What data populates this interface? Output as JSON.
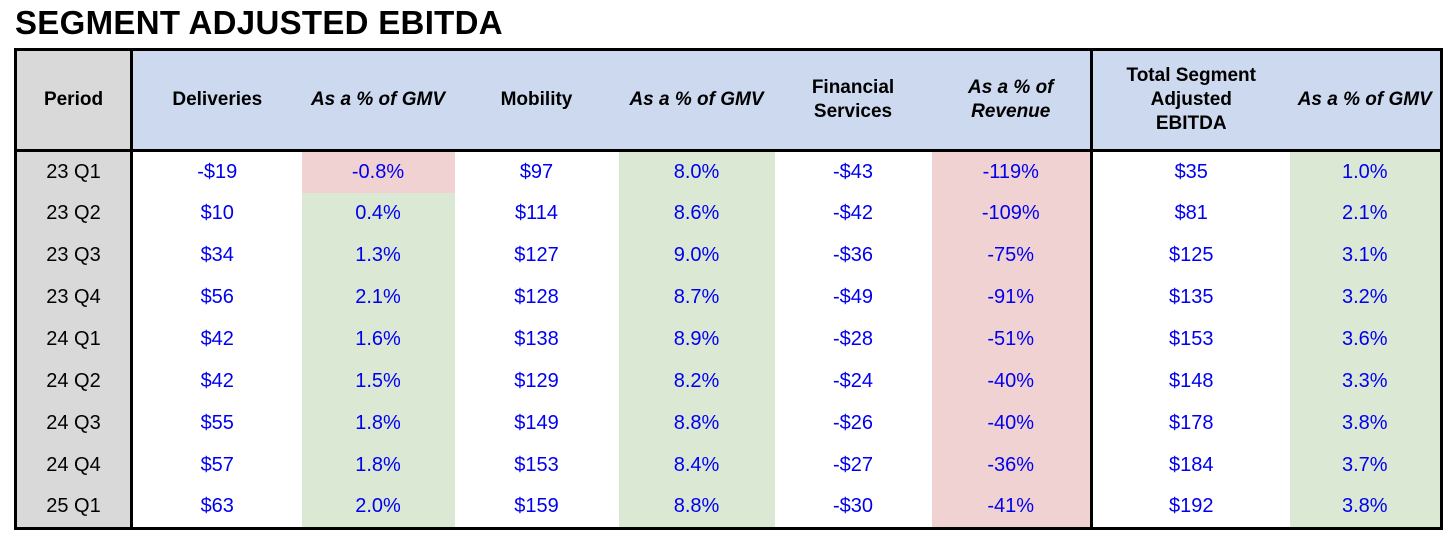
{
  "title": "SEGMENT ADJUSTED EBITDA",
  "colors": {
    "header_bg": "#cdd9ef",
    "period_bg": "#d9d9d9",
    "positive_bg": "#dbe8d4",
    "negative_bg": "#f0d2d2",
    "value_text": "#0000ee",
    "header_text": "#000000",
    "border": "#000000"
  },
  "table": {
    "columns": [
      {
        "label": "Period"
      },
      {
        "label": "Deliveries"
      },
      {
        "label": "As a % of GMV"
      },
      {
        "label": "Mobility"
      },
      {
        "label": "As a % of GMV"
      },
      {
        "label": "Financial Services"
      },
      {
        "label": "As a % of Revenue"
      },
      {
        "label": "Total Segment Adjusted EBITDA"
      },
      {
        "label": "As a % of GMV"
      }
    ],
    "rows": [
      {
        "period": "23 Q1",
        "cells": [
          {
            "v": "-$19",
            "bg": "none"
          },
          {
            "v": "-0.8%",
            "bg": "red"
          },
          {
            "v": "$97",
            "bg": "none"
          },
          {
            "v": "8.0%",
            "bg": "green"
          },
          {
            "v": "-$43",
            "bg": "none"
          },
          {
            "v": "-119%",
            "bg": "red"
          },
          {
            "v": "$35",
            "bg": "none"
          },
          {
            "v": "1.0%",
            "bg": "green"
          }
        ]
      },
      {
        "period": "23 Q2",
        "cells": [
          {
            "v": "$10",
            "bg": "none"
          },
          {
            "v": "0.4%",
            "bg": "green"
          },
          {
            "v": "$114",
            "bg": "none"
          },
          {
            "v": "8.6%",
            "bg": "green"
          },
          {
            "v": "-$42",
            "bg": "none"
          },
          {
            "v": "-109%",
            "bg": "red"
          },
          {
            "v": "$81",
            "bg": "none"
          },
          {
            "v": "2.1%",
            "bg": "green"
          }
        ]
      },
      {
        "period": "23 Q3",
        "cells": [
          {
            "v": "$34",
            "bg": "none"
          },
          {
            "v": "1.3%",
            "bg": "green"
          },
          {
            "v": "$127",
            "bg": "none"
          },
          {
            "v": "9.0%",
            "bg": "green"
          },
          {
            "v": "-$36",
            "bg": "none"
          },
          {
            "v": "-75%",
            "bg": "red"
          },
          {
            "v": "$125",
            "bg": "none"
          },
          {
            "v": "3.1%",
            "bg": "green"
          }
        ]
      },
      {
        "period": "23 Q4",
        "cells": [
          {
            "v": "$56",
            "bg": "none"
          },
          {
            "v": "2.1%",
            "bg": "green"
          },
          {
            "v": "$128",
            "bg": "none"
          },
          {
            "v": "8.7%",
            "bg": "green"
          },
          {
            "v": "-$49",
            "bg": "none"
          },
          {
            "v": "-91%",
            "bg": "red"
          },
          {
            "v": "$135",
            "bg": "none"
          },
          {
            "v": "3.2%",
            "bg": "green"
          }
        ]
      },
      {
        "period": "24 Q1",
        "cells": [
          {
            "v": "$42",
            "bg": "none"
          },
          {
            "v": "1.6%",
            "bg": "green"
          },
          {
            "v": "$138",
            "bg": "none"
          },
          {
            "v": "8.9%",
            "bg": "green"
          },
          {
            "v": "-$28",
            "bg": "none"
          },
          {
            "v": "-51%",
            "bg": "red"
          },
          {
            "v": "$153",
            "bg": "none"
          },
          {
            "v": "3.6%",
            "bg": "green"
          }
        ]
      },
      {
        "period": "24 Q2",
        "cells": [
          {
            "v": "$42",
            "bg": "none"
          },
          {
            "v": "1.5%",
            "bg": "green"
          },
          {
            "v": "$129",
            "bg": "none"
          },
          {
            "v": "8.2%",
            "bg": "green"
          },
          {
            "v": "-$24",
            "bg": "none"
          },
          {
            "v": "-40%",
            "bg": "red"
          },
          {
            "v": "$148",
            "bg": "none"
          },
          {
            "v": "3.3%",
            "bg": "green"
          }
        ]
      },
      {
        "period": "24 Q3",
        "cells": [
          {
            "v": "$55",
            "bg": "none"
          },
          {
            "v": "1.8%",
            "bg": "green"
          },
          {
            "v": "$149",
            "bg": "none"
          },
          {
            "v": "8.8%",
            "bg": "green"
          },
          {
            "v": "-$26",
            "bg": "none"
          },
          {
            "v": "-40%",
            "bg": "red"
          },
          {
            "v": "$178",
            "bg": "none"
          },
          {
            "v": "3.8%",
            "bg": "green"
          }
        ]
      },
      {
        "period": "24 Q4",
        "cells": [
          {
            "v": "$57",
            "bg": "none"
          },
          {
            "v": "1.8%",
            "bg": "green"
          },
          {
            "v": "$153",
            "bg": "none"
          },
          {
            "v": "8.4%",
            "bg": "green"
          },
          {
            "v": "-$27",
            "bg": "none"
          },
          {
            "v": "-36%",
            "bg": "red"
          },
          {
            "v": "$184",
            "bg": "none"
          },
          {
            "v": "3.7%",
            "bg": "green"
          }
        ]
      },
      {
        "period": "25 Q1",
        "cells": [
          {
            "v": "$63",
            "bg": "none"
          },
          {
            "v": "2.0%",
            "bg": "green"
          },
          {
            "v": "$159",
            "bg": "none"
          },
          {
            "v": "8.8%",
            "bg": "green"
          },
          {
            "v": "-$30",
            "bg": "none"
          },
          {
            "v": "-41%",
            "bg": "red"
          },
          {
            "v": "$192",
            "bg": "none"
          },
          {
            "v": "3.8%",
            "bg": "green"
          }
        ]
      }
    ]
  },
  "chart_data": {
    "type": "table",
    "title": "SEGMENT ADJUSTED EBITDA",
    "categories": [
      "23 Q1",
      "23 Q2",
      "23 Q3",
      "23 Q4",
      "24 Q1",
      "24 Q2",
      "24 Q3",
      "24 Q4",
      "25 Q1"
    ],
    "series": [
      {
        "name": "Deliveries",
        "values": [
          -19,
          10,
          34,
          56,
          42,
          42,
          55,
          57,
          63
        ]
      },
      {
        "name": "Deliveries as a % of GMV",
        "values": [
          -0.8,
          0.4,
          1.3,
          2.1,
          1.6,
          1.5,
          1.8,
          1.8,
          2.0
        ]
      },
      {
        "name": "Mobility",
        "values": [
          97,
          114,
          127,
          128,
          138,
          129,
          149,
          153,
          159
        ]
      },
      {
        "name": "Mobility as a % of GMV",
        "values": [
          8.0,
          8.6,
          9.0,
          8.7,
          8.9,
          8.2,
          8.8,
          8.4,
          8.8
        ]
      },
      {
        "name": "Financial Services",
        "values": [
          -43,
          -42,
          -36,
          -49,
          -28,
          -24,
          -26,
          -27,
          -30
        ]
      },
      {
        "name": "Financial Services as a % of Revenue",
        "values": [
          -119,
          -109,
          -75,
          -91,
          -51,
          -40,
          -40,
          -36,
          -41
        ]
      },
      {
        "name": "Total Segment Adjusted EBITDA",
        "values": [
          35,
          81,
          125,
          135,
          153,
          148,
          178,
          184,
          192
        ]
      },
      {
        "name": "Total Segment Adjusted EBITDA as a % of GMV",
        "values": [
          1.0,
          2.1,
          3.1,
          3.2,
          3.6,
          3.3,
          3.8,
          3.7,
          3.8
        ]
      }
    ]
  }
}
